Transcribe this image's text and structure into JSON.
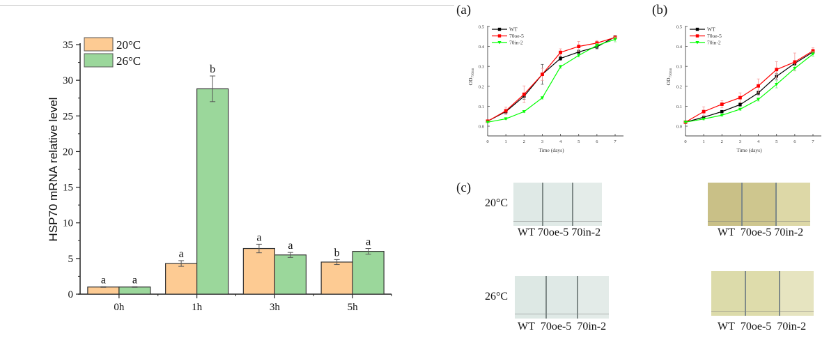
{
  "figure": {
    "panel_labels": {
      "a": "(a)",
      "b": "(b)",
      "c": "(c)"
    },
    "photos": {
      "row_labels": [
        "20°C",
        "26°C"
      ],
      "tube_labels": [
        "WT",
        "70oe-5",
        "70in-2"
      ],
      "panels": [
        {
          "temperature": "20°C",
          "lighting": "backlit",
          "tube_colors": [
            "#dfe9e6",
            "#e0eae7",
            "#e4ece9"
          ]
        },
        {
          "temperature": "20°C",
          "lighting": "front",
          "tube_colors": [
            "#c9c087",
            "#cec68e",
            "#ddd8a7"
          ]
        },
        {
          "temperature": "26°C",
          "lighting": "backlit",
          "tube_colors": [
            "#dde8e4",
            "#dfe9e6",
            "#e3ebe8"
          ]
        },
        {
          "temperature": "26°C",
          "lighting": "front",
          "tube_colors": [
            "#dcdbaa",
            "#dedcab",
            "#e6e4c0"
          ]
        }
      ]
    }
  },
  "chart_data": [
    {
      "id": "bar-hsp70",
      "type": "bar",
      "title": "",
      "xlabel": "",
      "ylabel": "HSP70 mRNA relative level",
      "ylim": [
        0,
        35
      ],
      "yticks": [
        0,
        5,
        10,
        15,
        20,
        25,
        30,
        35
      ],
      "categories": [
        "0h",
        "1h",
        "3h",
        "5h"
      ],
      "legend_position": "top-left",
      "series": [
        {
          "name": "20°C",
          "color": "#fdcb93",
          "values": [
            1.0,
            4.3,
            6.4,
            4.5
          ],
          "errors": [
            0.05,
            0.4,
            0.6,
            0.35
          ],
          "letters": [
            "a",
            "a",
            "a",
            "b"
          ]
        },
        {
          "name": "26°C",
          "color": "#9bd79b",
          "values": [
            1.0,
            28.8,
            5.5,
            6.0
          ],
          "errors": [
            0.05,
            1.8,
            0.35,
            0.4
          ],
          "letters": [
            "a",
            "b",
            "a",
            "a"
          ]
        }
      ]
    },
    {
      "id": "line-a",
      "type": "line",
      "panel": "(a)",
      "xlabel": "Time (days)",
      "ylabel": "OD",
      "ylabel_sub": "730nm",
      "xlim": [
        0,
        7
      ],
      "ylim": [
        0,
        0.5
      ],
      "xticks": [
        0,
        1,
        2,
        3,
        4,
        5,
        6,
        7
      ],
      "yticks": [
        "0.0",
        "0.1",
        "0.2",
        "0.3",
        "0.4",
        "0.5"
      ],
      "legend_position": "top-left",
      "x": [
        0,
        1,
        2,
        3,
        4,
        5,
        6,
        7
      ],
      "series": [
        {
          "name": "WT",
          "color": "#000000",
          "marker": "square",
          "values": [
            0.025,
            0.073,
            0.15,
            0.26,
            0.34,
            0.372,
            0.398,
            0.448
          ],
          "errors": [
            0.003,
            0.01,
            0.015,
            0.05,
            0.01,
            0.01,
            0.01,
            0.005
          ]
        },
        {
          "name": "70oe-5",
          "color": "#ff0000",
          "marker": "circle",
          "values": [
            0.025,
            0.077,
            0.16,
            0.26,
            0.37,
            0.4,
            0.417,
            0.445
          ],
          "errors": [
            0.003,
            0.018,
            0.042,
            0.03,
            0.018,
            0.025,
            0.012,
            0.008
          ]
        },
        {
          "name": "70in-2",
          "color": "#00ff00",
          "marker": "triangle-down",
          "values": [
            0.02,
            0.037,
            0.073,
            0.142,
            0.298,
            0.355,
            0.405,
            0.435
          ],
          "errors": [
            0.002,
            0.004,
            0.005,
            0.006,
            0.008,
            0.008,
            0.01,
            0.012
          ]
        }
      ]
    },
    {
      "id": "line-b",
      "type": "line",
      "panel": "(b)",
      "xlabel": "Time (days)",
      "ylabel": "OD",
      "ylabel_sub": "730nm",
      "xlim": [
        0,
        7
      ],
      "ylim": [
        0,
        0.5
      ],
      "xticks": [
        0,
        1,
        2,
        3,
        4,
        5,
        6,
        7
      ],
      "yticks": [
        "0.0",
        "0.1",
        "0.2",
        "0.3",
        "0.4",
        "0.5"
      ],
      "legend_position": "top-left",
      "x": [
        0,
        1,
        2,
        3,
        4,
        5,
        6,
        7
      ],
      "series": [
        {
          "name": "WT",
          "color": "#000000",
          "marker": "square",
          "values": [
            0.02,
            0.045,
            0.073,
            0.108,
            0.167,
            0.25,
            0.315,
            0.372
          ],
          "errors": [
            0.002,
            0.005,
            0.006,
            0.008,
            0.01,
            0.015,
            0.01,
            0.008
          ]
        },
        {
          "name": "70oe-5",
          "color": "#ff0000",
          "marker": "circle",
          "values": [
            0.02,
            0.073,
            0.11,
            0.143,
            0.202,
            0.284,
            0.322,
            0.378
          ],
          "errors": [
            0.002,
            0.024,
            0.018,
            0.024,
            0.035,
            0.04,
            0.045,
            0.015
          ]
        },
        {
          "name": "70in-2",
          "color": "#00ff00",
          "marker": "triangle-down",
          "values": [
            0.02,
            0.036,
            0.055,
            0.085,
            0.134,
            0.21,
            0.29,
            0.362
          ],
          "errors": [
            0.002,
            0.004,
            0.005,
            0.005,
            0.008,
            0.018,
            0.012,
            0.012
          ]
        }
      ]
    }
  ]
}
